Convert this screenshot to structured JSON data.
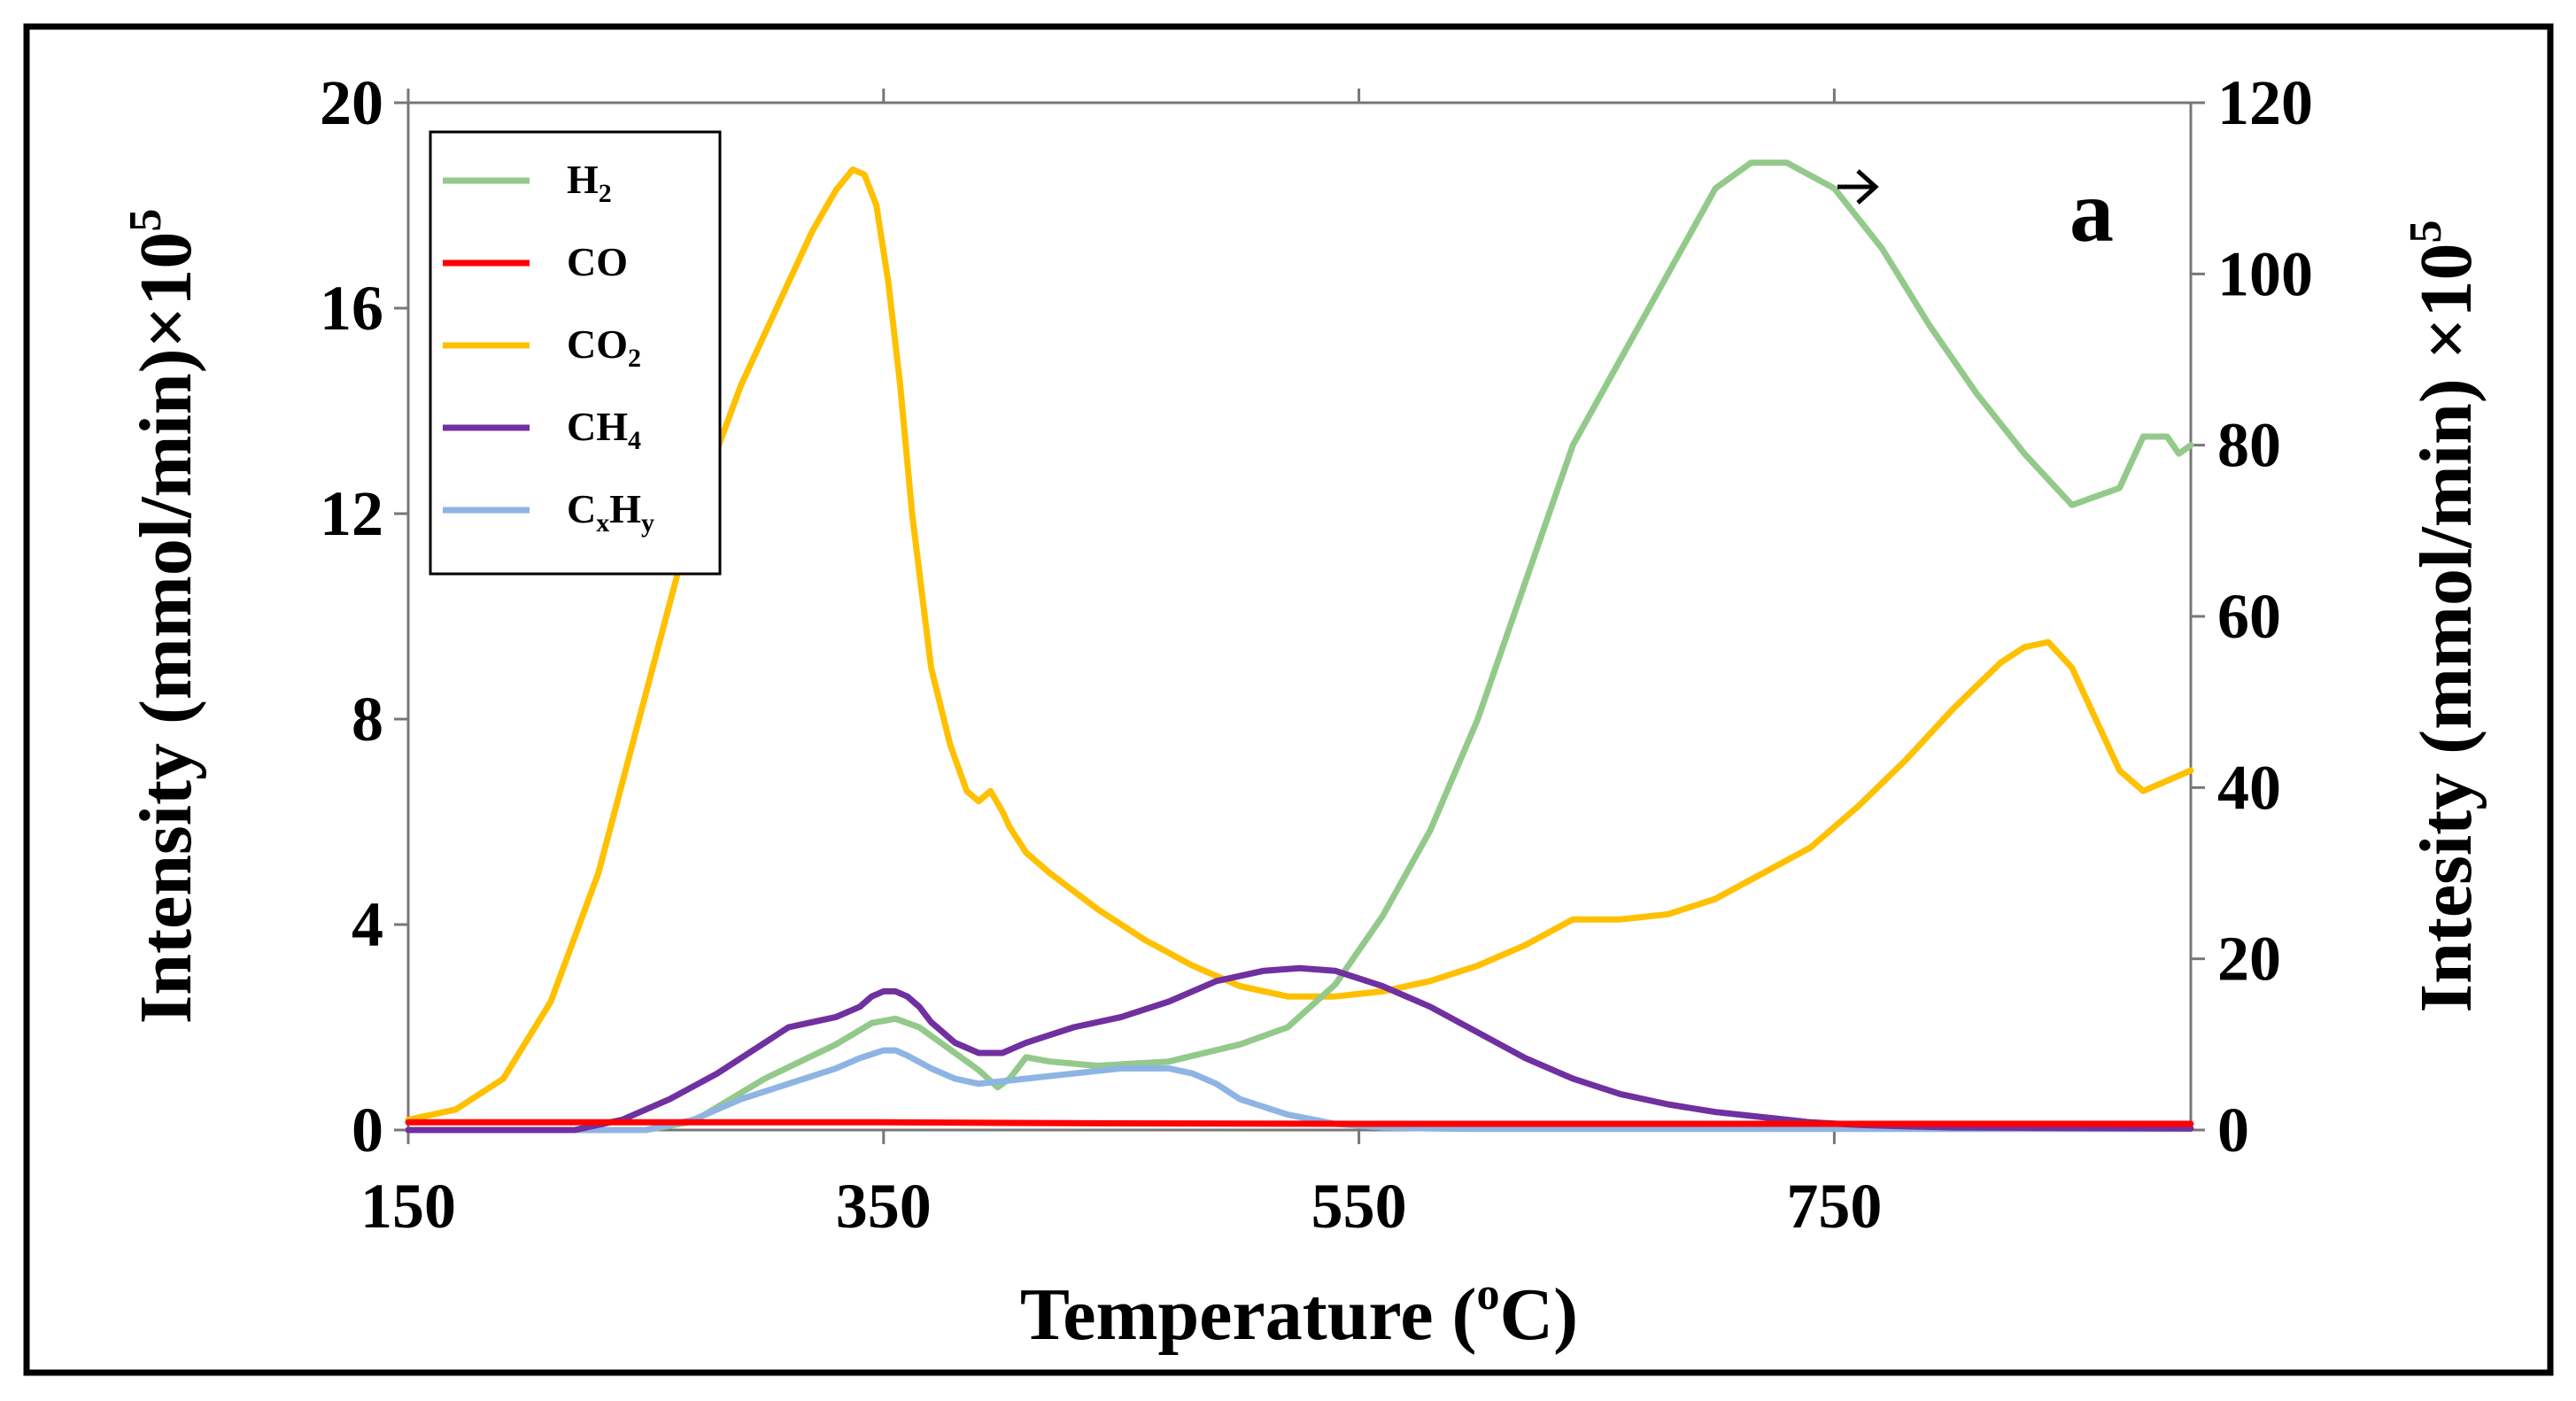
{
  "chart_data": {
    "type": "line",
    "panel_label": "a",
    "xlabel": "Temperature",
    "xlabel_unit": "(°C)",
    "xlabel_parts": {
      "before": "Temperature (",
      "sup": "o",
      "after": "C)"
    },
    "ylabel_left_parts": {
      "main": "Intensity (mmol/min)×10",
      "sup": "5"
    },
    "ylabel_right_parts": {
      "main": "Intesity (mmol/min) ×10",
      "sup": "5"
    },
    "xlim": [
      150,
      900
    ],
    "ylim_left": [
      0,
      20
    ],
    "ylim_right": [
      0,
      120
    ],
    "xticks": [
      150,
      350,
      550,
      750
    ],
    "yticks_left": [
      0,
      4,
      8,
      12,
      16,
      20
    ],
    "yticks_right": [
      0,
      20,
      40,
      60,
      80,
      100,
      120
    ],
    "secondary_axis_note": "H2 plotted on right axis (arrow →)",
    "legend": [
      {
        "key": "H2",
        "base": "H",
        "sub": "2",
        "color": "#93C98A"
      },
      {
        "key": "CO",
        "base": "CO",
        "sub": "",
        "color": "#FF0000"
      },
      {
        "key": "CO2",
        "base": "CO",
        "sub": "2",
        "color": "#FFC000"
      },
      {
        "key": "CH4",
        "base": "CH",
        "sub": "4",
        "color": "#7030A0"
      },
      {
        "key": "CxHy",
        "base": "C",
        "sub": "x",
        "base2": "H",
        "sub2": "y",
        "color": "#8EB4E3"
      }
    ],
    "series": [
      {
        "name": "H2",
        "axis": "right",
        "color": "#93C98A",
        "x": [
          150,
          250,
          270,
          300,
          330,
          345,
          355,
          365,
          375,
          390,
          398,
          403,
          410,
          420,
          440,
          470,
          500,
          520,
          540,
          560,
          580,
          600,
          620,
          640,
          660,
          680,
          700,
          715,
          730,
          750,
          770,
          790,
          810,
          830,
          850,
          870,
          880,
          890,
          895,
          900
        ],
        "y": [
          0,
          0,
          1,
          6,
          10,
          12.5,
          13,
          12,
          10,
          7,
          5,
          6,
          8.5,
          8,
          7.5,
          8,
          10,
          12,
          17,
          25,
          35,
          48,
          64,
          80,
          90,
          100,
          110,
          113,
          113,
          110,
          103,
          94,
          86,
          79,
          73,
          75,
          81,
          81,
          79,
          80
        ]
      },
      {
        "name": "CO",
        "axis": "left",
        "color": "#FF0000",
        "x": [
          150,
          250,
          350,
          450,
          550,
          650,
          750,
          850,
          900
        ],
        "y": [
          0.15,
          0.15,
          0.15,
          0.13,
          0.12,
          0.12,
          0.12,
          0.12,
          0.12
        ]
      },
      {
        "name": "CO2",
        "axis": "left",
        "color": "#FFC000",
        "x": [
          150,
          170,
          190,
          210,
          230,
          250,
          270,
          290,
          310,
          320,
          330,
          337,
          342,
          347,
          352,
          357,
          362,
          370,
          378,
          385,
          390,
          395,
          400,
          403,
          410,
          420,
          440,
          460,
          480,
          500,
          520,
          540,
          560,
          580,
          600,
          620,
          640,
          660,
          680,
          700,
          720,
          740,
          760,
          780,
          800,
          820,
          830,
          840,
          850,
          860,
          870,
          880,
          890,
          900
        ],
        "y": [
          0.2,
          0.4,
          1,
          2.5,
          5,
          8.5,
          12,
          14.5,
          16.5,
          17.5,
          18.3,
          18.7,
          18.6,
          18,
          16.5,
          14.5,
          12,
          9,
          7.5,
          6.6,
          6.4,
          6.6,
          6.2,
          5.9,
          5.4,
          5,
          4.3,
          3.7,
          3.2,
          2.8,
          2.6,
          2.6,
          2.7,
          2.9,
          3.2,
          3.6,
          4.1,
          4.1,
          4.2,
          4.5,
          5,
          5.5,
          6.3,
          7.2,
          8.2,
          9.1,
          9.4,
          9.5,
          9,
          8,
          7,
          6.6,
          6.8,
          7
        ]
      },
      {
        "name": "CH4",
        "axis": "left",
        "color": "#7030A0",
        "x": [
          150,
          220,
          240,
          260,
          280,
          300,
          310,
          320,
          330,
          340,
          345,
          350,
          355,
          360,
          365,
          370,
          380,
          390,
          400,
          410,
          430,
          450,
          470,
          490,
          510,
          525,
          540,
          560,
          580,
          600,
          620,
          640,
          660,
          680,
          700,
          720,
          740,
          760,
          780,
          800,
          850,
          900
        ],
        "y": [
          0,
          0,
          0.2,
          0.6,
          1.1,
          1.7,
          2,
          2.1,
          2.2,
          2.4,
          2.6,
          2.7,
          2.7,
          2.6,
          2.4,
          2.1,
          1.7,
          1.5,
          1.5,
          1.7,
          2,
          2.2,
          2.5,
          2.9,
          3.1,
          3.15,
          3.1,
          2.8,
          2.4,
          1.9,
          1.4,
          1,
          0.7,
          0.5,
          0.35,
          0.25,
          0.15,
          0.1,
          0.07,
          0.05,
          0.04,
          0.03
        ]
      },
      {
        "name": "CxHy",
        "axis": "left",
        "color": "#8EB4E3",
        "x": [
          150,
          250,
          270,
          290,
          310,
          330,
          340,
          350,
          355,
          360,
          370,
          380,
          390,
          400,
          410,
          430,
          450,
          470,
          480,
          490,
          500,
          520,
          540,
          560,
          580,
          600,
          650,
          700,
          750,
          800,
          900
        ],
        "y": [
          0,
          0,
          0.2,
          0.6,
          0.9,
          1.2,
          1.4,
          1.55,
          1.55,
          1.45,
          1.2,
          1,
          0.9,
          0.95,
          1,
          1.1,
          1.2,
          1.2,
          1.1,
          0.9,
          0.6,
          0.3,
          0.12,
          0.05,
          0.03,
          0.02,
          0.02,
          0.02,
          0.02,
          0.02,
          0.02
        ]
      }
    ]
  }
}
